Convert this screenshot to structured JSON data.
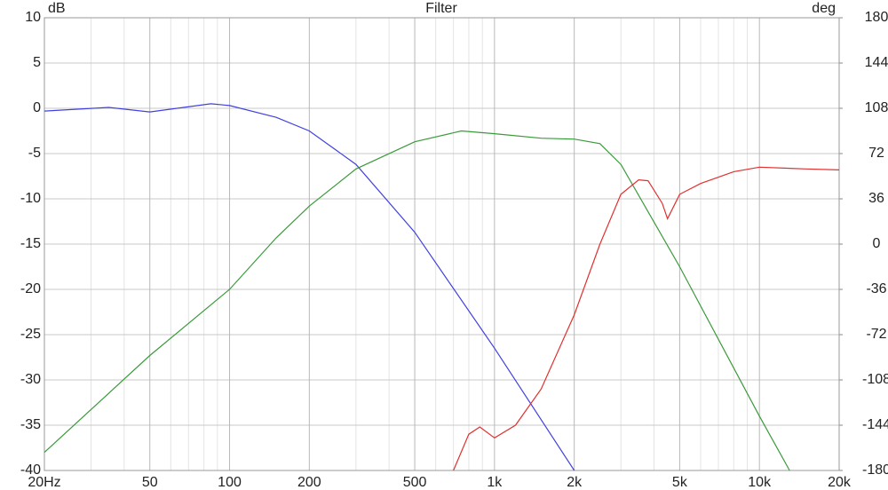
{
  "chart_data": {
    "type": "line",
    "title": "Filter",
    "ylabel": "dB",
    "y2label": "deg",
    "xscale": "log",
    "grid": true,
    "xlim": [
      20,
      20000
    ],
    "xticks": [
      {
        "value": 20,
        "label": "20Hz"
      },
      50,
      100,
      200,
      500,
      {
        "value": 1000,
        "label": "1k"
      },
      {
        "value": 2000,
        "label": "2k"
      },
      {
        "value": 5000,
        "label": "5k"
      },
      {
        "value": 10000,
        "label": "10k"
      },
      {
        "value": 20000,
        "label": "20k"
      }
    ],
    "x_minor_ticks": [
      30,
      40,
      60,
      70,
      80,
      90,
      300,
      400,
      600,
      700,
      800,
      900,
      3000,
      4000,
      6000,
      7000,
      8000,
      9000
    ],
    "ylim": [
      -40,
      10
    ],
    "yticks": [
      -40,
      -35,
      -30,
      -25,
      -20,
      -15,
      -10,
      -5,
      0,
      5,
      10
    ],
    "y2lim": [
      -180,
      180
    ],
    "y2ticks": [
      -180,
      -144,
      -108,
      -72,
      -36,
      0,
      36,
      72,
      108,
      144,
      180
    ],
    "series": [
      {
        "color": "#4040e0",
        "x": [
          20,
          35,
          50,
          85,
          100,
          150,
          200,
          300,
          500,
          1000,
          2000
        ],
        "values": [
          -0.3,
          0.1,
          -0.4,
          0.5,
          0.3,
          -1,
          -2.5,
          -6.2,
          -13.7,
          -26.5,
          -40
        ]
      },
      {
        "color": "#3a9a3a",
        "x": [
          20,
          50,
          100,
          150,
          200,
          300,
          500,
          750,
          1000,
          1500,
          2000,
          2500,
          3000,
          5000,
          10000,
          13000
        ],
        "values": [
          -38,
          -27.3,
          -20,
          -14.3,
          -10.8,
          -6.7,
          -3.7,
          -2.5,
          -2.8,
          -3.3,
          -3.4,
          -3.9,
          -6.2,
          -17.5,
          -34,
          -40
        ]
      },
      {
        "color": "#e03030",
        "x": [
          700,
          800,
          880,
          1000,
          1200,
          1500,
          2000,
          2500,
          3000,
          3500,
          3800,
          4300,
          4500,
          5000,
          6000,
          8000,
          10000,
          15000,
          20000
        ],
        "values": [
          -40,
          -36,
          -35.2,
          -36.4,
          -35,
          -31,
          -22.8,
          -15,
          -9.5,
          -7.9,
          -8,
          -10.5,
          -12.2,
          -9.5,
          -8.3,
          -7,
          -6.5,
          -6.7,
          -6.8
        ]
      }
    ]
  }
}
